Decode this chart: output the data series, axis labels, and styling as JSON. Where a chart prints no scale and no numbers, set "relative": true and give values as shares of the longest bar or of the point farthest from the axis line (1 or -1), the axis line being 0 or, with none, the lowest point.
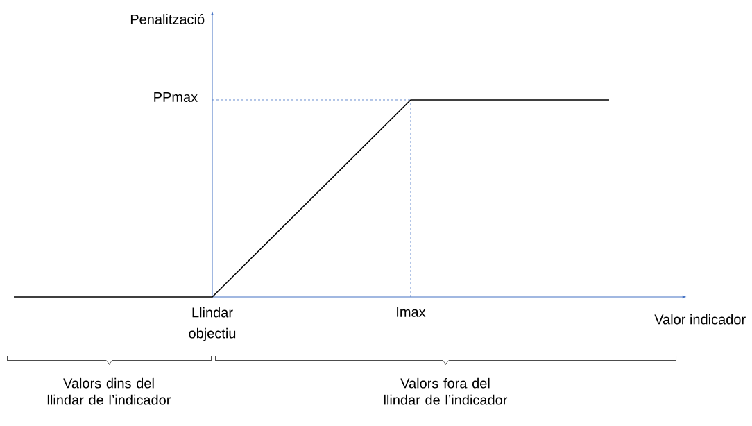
{
  "chart_data": {
    "type": "line",
    "relative": true,
    "categories": [
      null,
      "Llindar objectiu",
      "Imax",
      null
    ],
    "values": [
      0,
      0,
      1,
      1
    ],
    "color": "#000000",
    "xlabel": "Valor indicador",
    "ref_lines": [
      {
        "axis": "y",
        "value": 1,
        "label": "PPmax",
        "line_style": "dashed",
        "color": "#4472c4"
      },
      {
        "axis": "x",
        "value": "Imax",
        "line_style": "dashed",
        "color": "#4472c4"
      }
    ],
    "annotations": [
      "Penalització",
      "Valors dins del llindar de l’indicador",
      "Valors fora del llindar de l’indicador"
    ]
  }
}
